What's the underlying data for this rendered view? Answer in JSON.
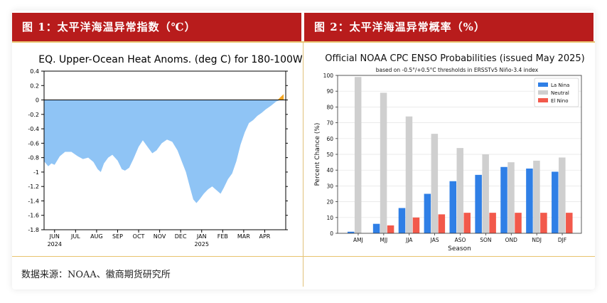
{
  "panels": {
    "left_header": "图 1：太平洋海温异常指数（℃）",
    "right_header": "图 2：太平洋海温异常概率（%）",
    "source": "数据来源：NOAA、徽商期货研究所"
  },
  "chart_data": [
    {
      "type": "area",
      "title": "EQ. Upper-Ocean Heat Anoms. (deg C) for 180-100W",
      "ylim": [
        -1.8,
        0.4
      ],
      "yticks": [
        "0.4",
        "0.2",
        "0",
        "-0.2",
        "-0.4",
        "-0.6",
        "-0.8",
        "-1",
        "-1.2",
        "-1.4",
        "-1.6",
        "-1.8"
      ],
      "month_labels": [
        "JUN",
        "JUL",
        "AUG",
        "SEP",
        "OCT",
        "NOV",
        "DEC",
        "JAN",
        "FEB",
        "MAR",
        "APR"
      ],
      "year_labels": [
        {
          "label": "2024",
          "month_index": 0
        },
        {
          "label": "2025",
          "month_index": 7
        }
      ],
      "x_month_range": [
        -0.5,
        11.0
      ],
      "fill_color": "#8fc4f5",
      "positive_color": "#f5a623",
      "series": [
        {
          "x": -0.5,
          "y": -0.85
        },
        {
          "x": -0.3,
          "y": -0.92
        },
        {
          "x": -0.15,
          "y": -0.88
        },
        {
          "x": 0.0,
          "y": -0.9
        },
        {
          "x": 0.25,
          "y": -0.78
        },
        {
          "x": 0.5,
          "y": -0.72
        },
        {
          "x": 0.8,
          "y": -0.72
        },
        {
          "x": 1.1,
          "y": -0.78
        },
        {
          "x": 1.35,
          "y": -0.82
        },
        {
          "x": 1.6,
          "y": -0.8
        },
        {
          "x": 1.85,
          "y": -0.86
        },
        {
          "x": 2.05,
          "y": -0.96
        },
        {
          "x": 2.2,
          "y": -1.0
        },
        {
          "x": 2.35,
          "y": -0.88
        },
        {
          "x": 2.55,
          "y": -0.8
        },
        {
          "x": 2.75,
          "y": -0.76
        },
        {
          "x": 3.0,
          "y": -0.84
        },
        {
          "x": 3.2,
          "y": -0.96
        },
        {
          "x": 3.35,
          "y": -0.98
        },
        {
          "x": 3.55,
          "y": -0.94
        },
        {
          "x": 3.75,
          "y": -0.82
        },
        {
          "x": 4.0,
          "y": -0.65
        },
        {
          "x": 4.2,
          "y": -0.56
        },
        {
          "x": 4.45,
          "y": -0.66
        },
        {
          "x": 4.65,
          "y": -0.74
        },
        {
          "x": 4.85,
          "y": -0.7
        },
        {
          "x": 5.1,
          "y": -0.6
        },
        {
          "x": 5.35,
          "y": -0.55
        },
        {
          "x": 5.6,
          "y": -0.58
        },
        {
          "x": 5.85,
          "y": -0.7
        },
        {
          "x": 6.05,
          "y": -0.85
        },
        {
          "x": 6.25,
          "y": -1.0
        },
        {
          "x": 6.45,
          "y": -1.22
        },
        {
          "x": 6.6,
          "y": -1.38
        },
        {
          "x": 6.75,
          "y": -1.43
        },
        {
          "x": 6.9,
          "y": -1.38
        },
        {
          "x": 7.1,
          "y": -1.3
        },
        {
          "x": 7.3,
          "y": -1.24
        },
        {
          "x": 7.5,
          "y": -1.2
        },
        {
          "x": 7.7,
          "y": -1.25
        },
        {
          "x": 7.9,
          "y": -1.3
        },
        {
          "x": 8.05,
          "y": -1.22
        },
        {
          "x": 8.25,
          "y": -1.1
        },
        {
          "x": 8.45,
          "y": -1.02
        },
        {
          "x": 8.65,
          "y": -0.85
        },
        {
          "x": 8.85,
          "y": -0.62
        },
        {
          "x": 9.05,
          "y": -0.45
        },
        {
          "x": 9.25,
          "y": -0.32
        },
        {
          "x": 9.45,
          "y": -0.28
        },
        {
          "x": 9.65,
          "y": -0.22
        },
        {
          "x": 9.85,
          "y": -0.18
        },
        {
          "x": 10.05,
          "y": -0.13
        },
        {
          "x": 10.3,
          "y": -0.08
        },
        {
          "x": 10.55,
          "y": -0.02
        },
        {
          "x": 10.75,
          "y": 0.04
        },
        {
          "x": 10.9,
          "y": 0.08
        }
      ]
    },
    {
      "type": "bar",
      "title": "Official NOAA CPC ENSO Probabilities (issued May 2025)",
      "subtitle": "based on -0.5°/+0.5°C thresholds in ERSSTv5 Niño-3.4 index",
      "xlabel": "Season",
      "ylabel": "Percent Chance (%)",
      "ylim": [
        0,
        100
      ],
      "yticks": [
        0,
        10,
        20,
        30,
        40,
        50,
        60,
        70,
        80,
        90,
        100
      ],
      "categories": [
        "AMJ",
        "MJJ",
        "JJA",
        "JAS",
        "ASO",
        "SON",
        "OND",
        "NDJ",
        "DJF"
      ],
      "series": [
        {
          "name": "La Nina",
          "color": "#2f7fe6",
          "values": [
            1,
            6,
            16,
            25,
            33,
            37,
            42,
            41,
            39
          ]
        },
        {
          "name": "Neutral",
          "color": "#cfcfcf",
          "values": [
            99,
            89,
            74,
            63,
            54,
            50,
            45,
            46,
            48
          ]
        },
        {
          "name": "El Nino",
          "color": "#f2594b",
          "values": [
            0,
            5,
            10,
            12,
            13,
            13,
            13,
            13,
            13
          ]
        }
      ],
      "legend_position": "top-right"
    }
  ]
}
